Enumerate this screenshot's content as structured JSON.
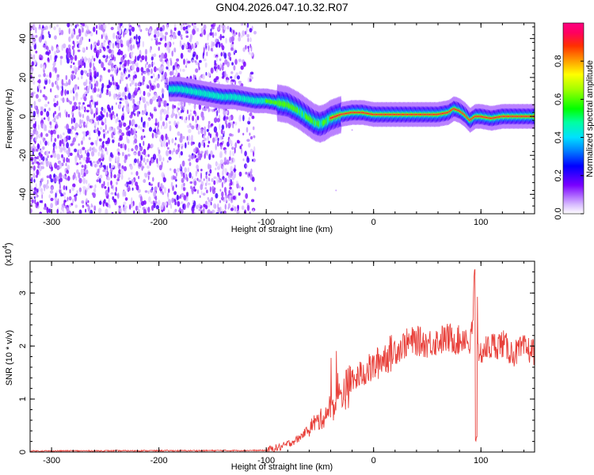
{
  "chart_data": [
    {
      "type": "heatmap",
      "title": "GN04.2026.047.10.32.R07",
      "xlabel": "Height of straight line (km)",
      "ylabel": "Frequency (Hz)",
      "xlim": [
        -320,
        150
      ],
      "ylim": [
        -50,
        48
      ],
      "xticks": [
        -300,
        -200,
        -100,
        0,
        100
      ],
      "xtick_labels": [
        "-300",
        "-200",
        "-100",
        "0",
        "100"
      ],
      "yticks": [
        -40,
        -20,
        0,
        20,
        40
      ],
      "ytick_labels": [
        "-40",
        "-20",
        "0",
        "20",
        "40"
      ],
      "noise_region_x": [
        -320,
        -110
      ],
      "ridge": {
        "x": [
          -190,
          -180,
          -170,
          -160,
          -150,
          -140,
          -130,
          -120,
          -110,
          -100,
          -90,
          -80,
          -70,
          -60,
          -55,
          -50,
          -45,
          -40,
          -30,
          -20,
          -10,
          0,
          10,
          20,
          30,
          40,
          50,
          60,
          70,
          75,
          80,
          85,
          90,
          95,
          100,
          110,
          120,
          130,
          140,
          150
        ],
        "y": [
          14,
          14,
          13,
          12,
          11,
          10,
          10,
          9,
          8,
          8,
          7,
          6,
          3,
          -1,
          -3,
          -4,
          -3,
          -1,
          1,
          2,
          2,
          1,
          1,
          1,
          1,
          1,
          1,
          1,
          2,
          4,
          3,
          1,
          -2,
          0,
          0,
          -1,
          0,
          0,
          0,
          0
        ]
      },
      "colorbar": {
        "label": "Normalized spectral amplitude",
        "range": [
          0,
          1
        ],
        "ticks": [
          0.0,
          0.2,
          0.4,
          0.6,
          0.8
        ],
        "tick_labels": [
          "0.0",
          "0.2",
          "0.4",
          "0.6",
          "0.8"
        ]
      }
    },
    {
      "type": "line",
      "xlabel": "Height of straight line (km)",
      "ylabel": "SNR (10 * v/v)",
      "yscale_note": "(x10",
      "yscale_exp": "4",
      "xlim": [
        -320,
        150
      ],
      "ylim": [
        0,
        3.6
      ],
      "xticks": [
        -300,
        -200,
        -100,
        0,
        100
      ],
      "xtick_labels": [
        "-300",
        "-200",
        "-100",
        "0",
        "100"
      ],
      "yticks": [
        0,
        1,
        2,
        3
      ],
      "ytick_labels": [
        "0",
        "1",
        "2",
        "3"
      ],
      "series": [
        {
          "name": "SNR",
          "color": "#e8403a",
          "x": [
            -320,
            -100,
            -85,
            -70,
            -60,
            -55,
            -50,
            -45,
            -40,
            -35,
            -30,
            -25,
            -20,
            -15,
            -10,
            -5,
            0,
            5,
            10,
            20,
            30,
            40,
            50,
            60,
            70,
            80,
            85,
            90,
            93,
            95,
            96,
            98,
            100,
            110,
            120,
            130,
            140,
            150
          ],
          "y": [
            0.02,
            0.03,
            0.1,
            0.25,
            0.45,
            0.55,
            0.6,
            0.7,
            0.85,
            0.9,
            1.1,
            1.2,
            1.3,
            1.4,
            1.5,
            1.55,
            1.6,
            1.7,
            1.8,
            1.9,
            2.05,
            2.1,
            2.05,
            2.1,
            2.15,
            2.1,
            2.2,
            2.0,
            2.5,
            0.2,
            3.4,
            1.5,
            1.9,
            2.0,
            2.05,
            1.85,
            1.95,
            1.9
          ],
          "jitter": 0.25
        }
      ]
    }
  ]
}
